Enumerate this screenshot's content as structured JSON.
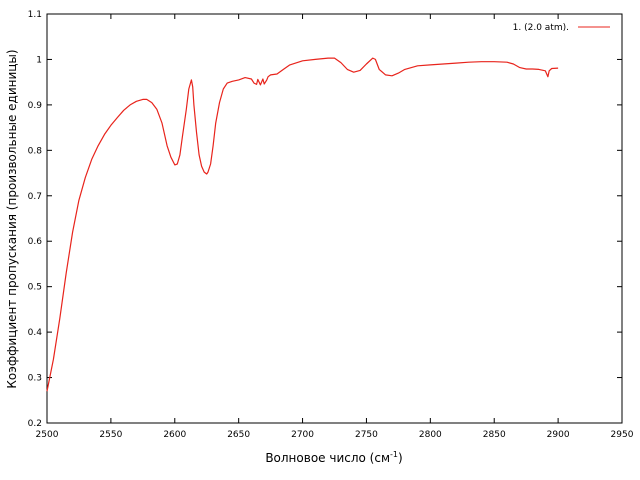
{
  "chart_data": {
    "type": "line",
    "title": "",
    "xlabel": "Волновое число (см",
    "xlabel_sup": "-1",
    "xlabel_suffix": ")",
    "ylabel": "Коэффициент пропускания (произвольные единицы)",
    "xlim": [
      2500,
      2950
    ],
    "ylim": [
      0.2,
      1.1
    ],
    "x_ticks": [
      "2500",
      "2550",
      "2600",
      "2650",
      "2700",
      "2750",
      "2800",
      "2850",
      "2900",
      "2950"
    ],
    "y_ticks": [
      "0.2",
      "0.3",
      "0.4",
      "0.5",
      "0.6",
      "0.7",
      "0.8",
      "0.9",
      "1",
      "1.1"
    ],
    "grid": false,
    "legend_position": "top-right",
    "series": [
      {
        "name": "1. (2.0 atm).",
        "color": "#e8241c",
        "x": [
          2500,
          2505,
          2510,
          2515,
          2520,
          2525,
          2530,
          2535,
          2540,
          2545,
          2550,
          2555,
          2560,
          2565,
          2570,
          2575,
          2578,
          2582,
          2586,
          2590,
          2594,
          2597,
          2600,
          2602,
          2604,
          2606,
          2609,
          2611,
          2613,
          2614,
          2615,
          2617,
          2619,
          2621,
          2623,
          2625,
          2626,
          2628,
          2630,
          2632,
          2635,
          2638,
          2641,
          2645,
          2650,
          2655,
          2660,
          2662,
          2664,
          2665,
          2667,
          2669,
          2670,
          2672,
          2673,
          2675,
          2680,
          2685,
          2690,
          2700,
          2710,
          2720,
          2725,
          2730,
          2735,
          2740,
          2745,
          2750,
          2755,
          2757,
          2760,
          2765,
          2770,
          2775,
          2780,
          2790,
          2800,
          2810,
          2820,
          2830,
          2840,
          2850,
          2860,
          2865,
          2870,
          2875,
          2880,
          2885,
          2890,
          2892,
          2893,
          2895,
          2900
        ],
        "y": [
          0.27,
          0.34,
          0.43,
          0.53,
          0.62,
          0.69,
          0.74,
          0.78,
          0.81,
          0.835,
          0.855,
          0.872,
          0.888,
          0.9,
          0.908,
          0.912,
          0.912,
          0.905,
          0.89,
          0.86,
          0.81,
          0.785,
          0.768,
          0.77,
          0.79,
          0.83,
          0.89,
          0.935,
          0.955,
          0.94,
          0.9,
          0.84,
          0.79,
          0.765,
          0.752,
          0.748,
          0.752,
          0.77,
          0.81,
          0.86,
          0.905,
          0.935,
          0.948,
          0.952,
          0.955,
          0.96,
          0.957,
          0.948,
          0.945,
          0.956,
          0.944,
          0.957,
          0.946,
          0.955,
          0.962,
          0.966,
          0.968,
          0.978,
          0.988,
          0.997,
          1.0,
          1.003,
          1.003,
          0.993,
          0.978,
          0.972,
          0.976,
          0.99,
          1.003,
          1.0,
          0.978,
          0.966,
          0.964,
          0.97,
          0.978,
          0.986,
          0.988,
          0.99,
          0.992,
          0.994,
          0.995,
          0.995,
          0.994,
          0.99,
          0.982,
          0.979,
          0.979,
          0.978,
          0.975,
          0.962,
          0.975,
          0.98,
          0.981
        ]
      }
    ]
  }
}
